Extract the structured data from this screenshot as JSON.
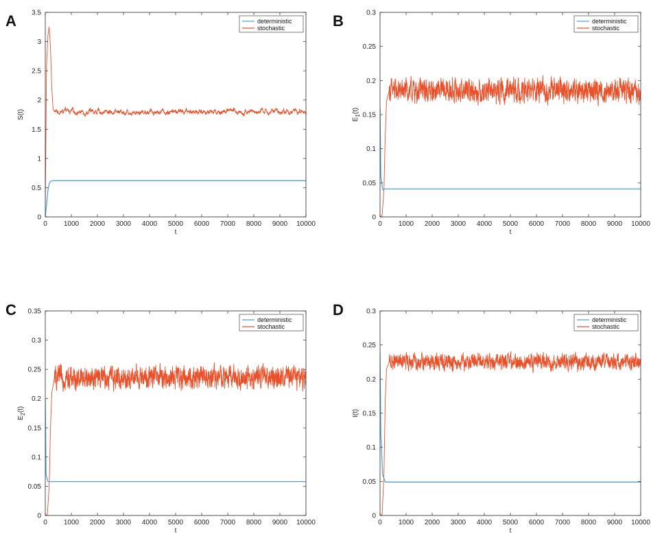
{
  "colors": {
    "deterministic": "#4fa3d9",
    "stochastic": "#e8512a"
  },
  "chart_data": [
    {
      "panel": "A",
      "type": "line",
      "xlabel": "t",
      "ylabel": "S(t)",
      "ylabel_base": "S(t)",
      "ylabel_sub": "",
      "ylabel_tail": "",
      "xlim": [
        0,
        10000
      ],
      "ylim": [
        0,
        3.5
      ],
      "xticks": [
        0,
        1000,
        2000,
        3000,
        4000,
        5000,
        6000,
        7000,
        8000,
        9000,
        10000
      ],
      "xtick_labels": [
        "0",
        "1000",
        "2000",
        "3000",
        "4000",
        "5000",
        "6000",
        "7000",
        "8000",
        "9000",
        "10000"
      ],
      "yticks": [
        0,
        0.5,
        1,
        1.5,
        2,
        2.5,
        3,
        3.5
      ],
      "ytick_labels": [
        "0",
        "0.5",
        "1",
        "1.5",
        "2",
        "2.5",
        "3",
        "3.5"
      ],
      "grid": false,
      "legend": "top-right",
      "series": [
        {
          "name": "deterministic",
          "x": [
            0,
            50,
            100,
            150,
            200,
            300,
            10000
          ],
          "y": [
            0.0,
            0.22,
            0.45,
            0.57,
            0.61,
            0.62,
            0.62
          ]
        },
        {
          "name": "stochastic",
          "x": [
            0,
            50,
            100,
            150,
            200,
            250,
            300,
            350,
            10000
          ],
          "y": [
            0.2,
            2.6,
            3.1,
            3.25,
            2.9,
            2.2,
            1.85,
            1.8,
            1.8
          ],
          "noise": 0.05
        }
      ]
    },
    {
      "panel": "B",
      "type": "line",
      "xlabel": "t",
      "ylabel": "E1(t)",
      "ylabel_base": "E",
      "ylabel_sub": "1",
      "ylabel_tail": "(t)",
      "xlim": [
        0,
        10000
      ],
      "ylim": [
        0,
        0.3
      ],
      "xticks": [
        0,
        1000,
        2000,
        3000,
        4000,
        5000,
        6000,
        7000,
        8000,
        9000,
        10000
      ],
      "xtick_labels": [
        "0",
        "1000",
        "2000",
        "3000",
        "4000",
        "5000",
        "6000",
        "7000",
        "8000",
        "9000",
        "10000"
      ],
      "yticks": [
        0,
        0.05,
        0.1,
        0.15,
        0.2,
        0.25,
        0.3
      ],
      "ytick_labels": [
        "0",
        "0.05",
        "0.1",
        "0.15",
        "0.2",
        "0.25",
        "0.3"
      ],
      "grid": false,
      "legend": "top-right",
      "series": [
        {
          "name": "deterministic",
          "x": [
            0,
            30,
            100,
            200,
            10000
          ],
          "y": [
            0.16,
            0.06,
            0.04,
            0.041,
            0.041
          ]
        },
        {
          "name": "stochastic",
          "x": [
            0,
            80,
            150,
            200,
            250,
            350,
            10000
          ],
          "y": [
            0.0,
            0.002,
            0.04,
            0.12,
            0.17,
            0.185,
            0.185
          ],
          "noise": 0.016
        }
      ]
    },
    {
      "panel": "C",
      "type": "line",
      "xlabel": "t",
      "ylabel": "E2(t)",
      "ylabel_base": "E",
      "ylabel_sub": "2",
      "ylabel_tail": "(t)",
      "xlim": [
        0,
        10000
      ],
      "ylim": [
        0,
        0.35
      ],
      "xticks": [
        0,
        1000,
        2000,
        3000,
        4000,
        5000,
        6000,
        7000,
        8000,
        9000,
        10000
      ],
      "xtick_labels": [
        "0",
        "1000",
        "2000",
        "3000",
        "4000",
        "5000",
        "6000",
        "7000",
        "8000",
        "9000",
        "10000"
      ],
      "yticks": [
        0,
        0.05,
        0.1,
        0.15,
        0.2,
        0.25,
        0.3,
        0.35
      ],
      "ytick_labels": [
        "0",
        "0.05",
        "0.1",
        "0.15",
        "0.2",
        "0.25",
        "0.3",
        "0.35"
      ],
      "grid": false,
      "legend": "top-right",
      "series": [
        {
          "name": "deterministic",
          "x": [
            0,
            30,
            100,
            200,
            10000
          ],
          "y": [
            0.2,
            0.07,
            0.058,
            0.058,
            0.058
          ]
        },
        {
          "name": "stochastic",
          "x": [
            0,
            80,
            150,
            200,
            250,
            350,
            10000
          ],
          "y": [
            0.0,
            0.002,
            0.05,
            0.15,
            0.21,
            0.235,
            0.237
          ],
          "noise": 0.018
        }
      ]
    },
    {
      "panel": "D",
      "type": "line",
      "xlabel": "t",
      "ylabel": "I(t)",
      "ylabel_base": "I(t)",
      "ylabel_sub": "",
      "ylabel_tail": "",
      "xlim": [
        0,
        10000
      ],
      "ylim": [
        0,
        0.3
      ],
      "xticks": [
        0,
        1000,
        2000,
        3000,
        4000,
        5000,
        6000,
        7000,
        8000,
        9000,
        10000
      ],
      "xtick_labels": [
        "0",
        "1000",
        "2000",
        "3000",
        "4000",
        "5000",
        "6000",
        "7000",
        "8000",
        "9000",
        "10000"
      ],
      "yticks": [
        0,
        0.05,
        0.1,
        0.15,
        0.2,
        0.25,
        0.3
      ],
      "ytick_labels": [
        "0",
        "0.05",
        "0.1",
        "0.15",
        "0.2",
        "0.25",
        "0.3"
      ],
      "grid": false,
      "legend": "top-right",
      "series": [
        {
          "name": "deterministic",
          "x": [
            0,
            30,
            100,
            200,
            10000
          ],
          "y": [
            0.24,
            0.12,
            0.06,
            0.049,
            0.049
          ]
        },
        {
          "name": "stochastic",
          "x": [
            0,
            80,
            150,
            200,
            250,
            350,
            10000
          ],
          "y": [
            0.0,
            0.002,
            0.06,
            0.17,
            0.215,
            0.225,
            0.225
          ],
          "noise": 0.011
        }
      ]
    }
  ]
}
